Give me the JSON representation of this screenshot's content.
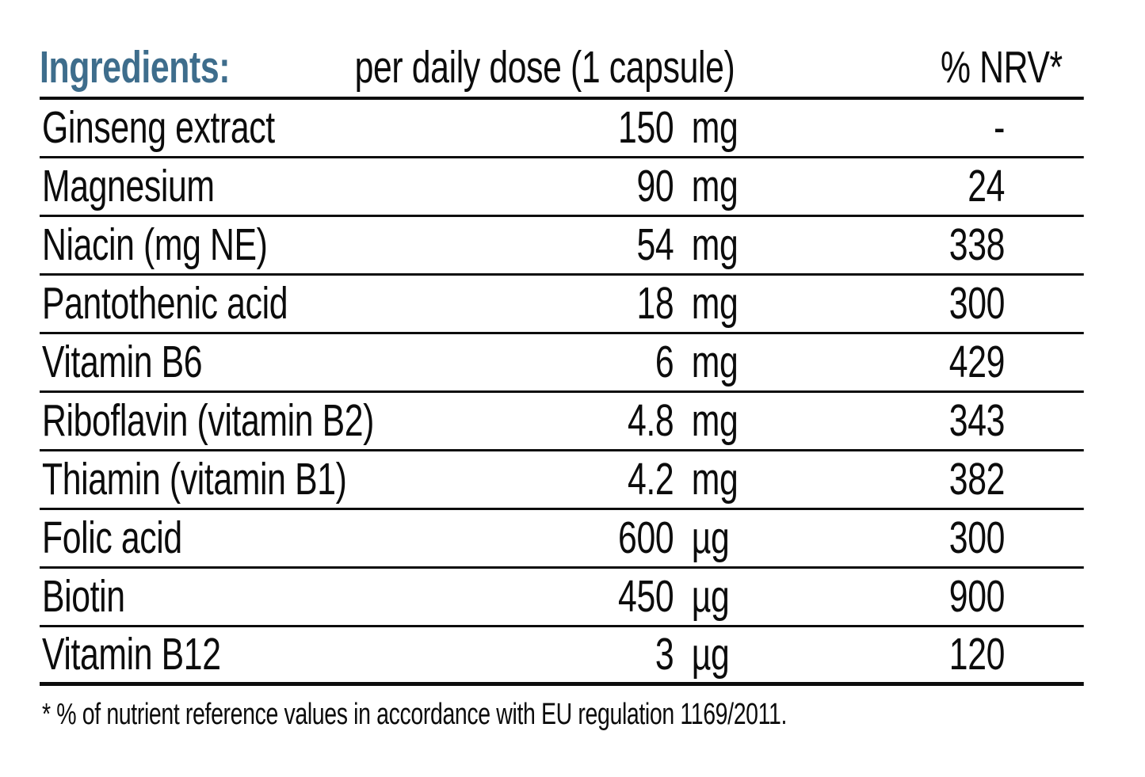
{
  "colors": {
    "heading_blue": "#3e6d8c",
    "text_black": "#0c0c0c",
    "rule_black": "#0c0c0c",
    "background": "#ffffff"
  },
  "table": {
    "header": {
      "ingredients_label": "Ingredients:",
      "dose_label": "per daily dose (1 capsule)",
      "nrv_label": "% NRV*"
    },
    "rows": [
      {
        "name": "Ginseng extract",
        "value": "150",
        "unit": "mg",
        "nrv": "-"
      },
      {
        "name": "Magnesium",
        "value": "90",
        "unit": "mg",
        "nrv": "24"
      },
      {
        "name": "Niacin (mg NE)",
        "value": "54",
        "unit": "mg",
        "nrv": "338"
      },
      {
        "name": "Pantothenic acid",
        "value": "18",
        "unit": "mg",
        "nrv": "300"
      },
      {
        "name": "Vitamin B6",
        "value": "6",
        "unit": "mg",
        "nrv": "429"
      },
      {
        "name": "Riboflavin (vitamin B2)",
        "value": "4.8",
        "unit": "mg",
        "nrv": "343"
      },
      {
        "name": "Thiamin (vitamin B1)",
        "value": "4.2",
        "unit": "mg",
        "nrv": "382"
      },
      {
        "name": "Folic acid",
        "value": "600",
        "unit": "µg",
        "nrv": "300"
      },
      {
        "name": "Biotin",
        "value": "450",
        "unit": "µg",
        "nrv": "900"
      },
      {
        "name": "Vitamin B12",
        "value": "3",
        "unit": "µg",
        "nrv": "120"
      }
    ],
    "footnote": "* % of nutrient reference values in accordance with EU regulation 1169/2011."
  }
}
